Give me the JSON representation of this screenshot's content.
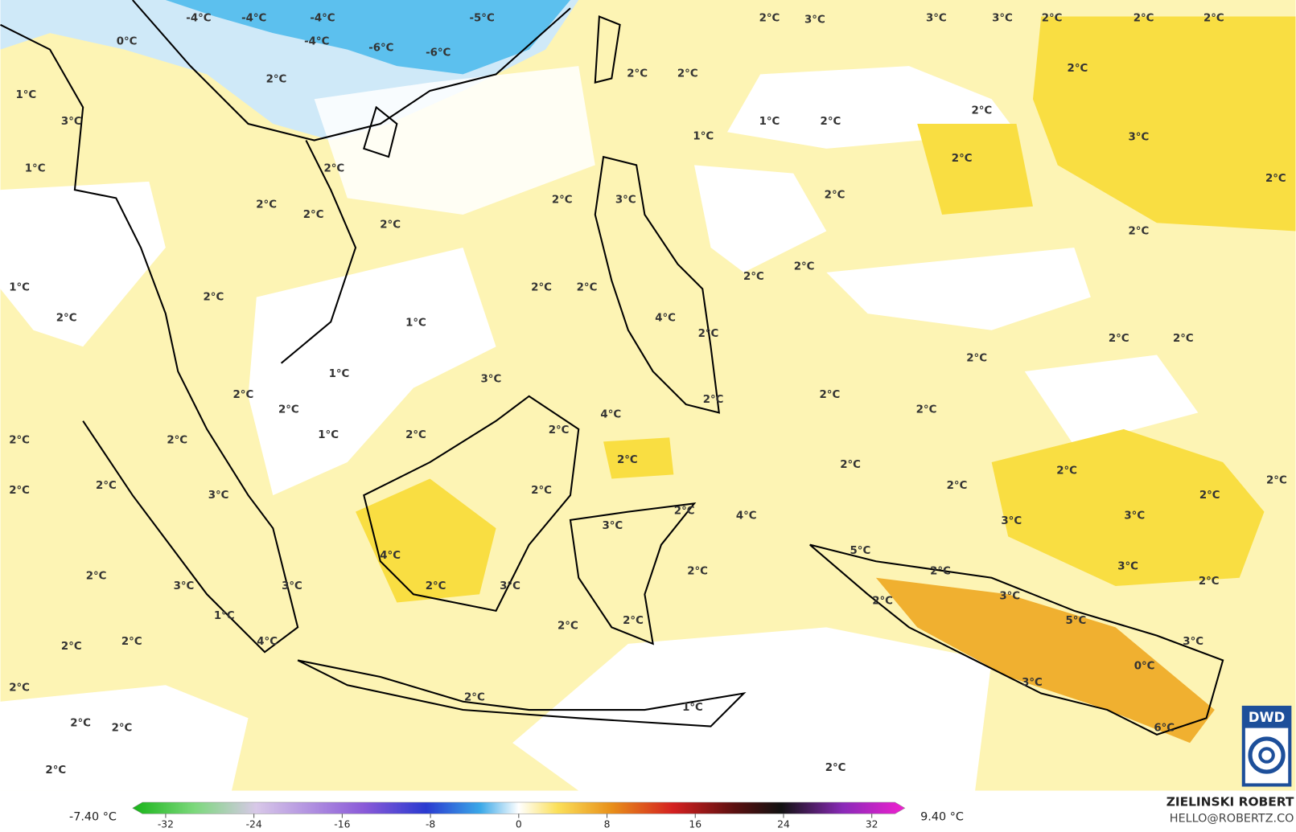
{
  "map": {
    "labels": [
      "-4°C",
      "-4°C",
      "-4°C",
      "-5°C",
      "0°C",
      "-4°C",
      "-6°C",
      "-6°C",
      "2°C",
      "3°C",
      "3°C",
      "3°C",
      "2°C",
      "2°C",
      "2°C",
      "2°C",
      "2°C",
      "2°C",
      "2°C",
      "1°C",
      "3°C",
      "2°C",
      "1°C",
      "2°C",
      "1°C",
      "3°C",
      "2°C",
      "1°C",
      "2°C",
      "2°C",
      "2°C",
      "3°C",
      "2°C",
      "2°C",
      "2°C",
      "2°C",
      "2°C",
      "2°C",
      "2°C",
      "1°C",
      "2°C",
      "2°C",
      "2°C",
      "2°C",
      "1°C",
      "4°C",
      "2°C",
      "2°C",
      "2°C",
      "2°C",
      "1°C",
      "3°C",
      "2°C",
      "2°C",
      "2°C",
      "2°C",
      "2°C",
      "4°C",
      "1°C",
      "2°C",
      "2°C",
      "2°C",
      "2°C",
      "2°C",
      "2°C",
      "2°C",
      "2°C",
      "2°C",
      "2°C",
      "2°C",
      "2°C",
      "3°C",
      "2°C",
      "2°C",
      "3°C",
      "4°C",
      "3°C",
      "3°C",
      "5°C",
      "4°C",
      "3°C",
      "2°C",
      "2°C",
      "2°C",
      "2°C",
      "3°C",
      "3°C",
      "2°C",
      "3°C",
      "3°C",
      "2°C",
      "1°C",
      "5°C",
      "2°C",
      "2°C",
      "2°C",
      "4°C",
      "3°C",
      "2°C",
      "0°C",
      "3°C",
      "2°C",
      "2°C",
      "1°C",
      "2°C",
      "2°C",
      "6°C",
      "2°C",
      "2°C"
    ],
    "logo": "DWD"
  },
  "colorbar": {
    "lim": [
      -35,
      35
    ],
    "ticks": [
      -32,
      -24,
      -16,
      -8,
      0,
      8,
      16,
      24,
      32
    ],
    "min_label": "-7.40 °C",
    "max_label": "9.40 °C"
  },
  "credits": {
    "author": "ZIELINSKI ROBERT",
    "contact": "HELLO@ROBERTZ.CO"
  }
}
